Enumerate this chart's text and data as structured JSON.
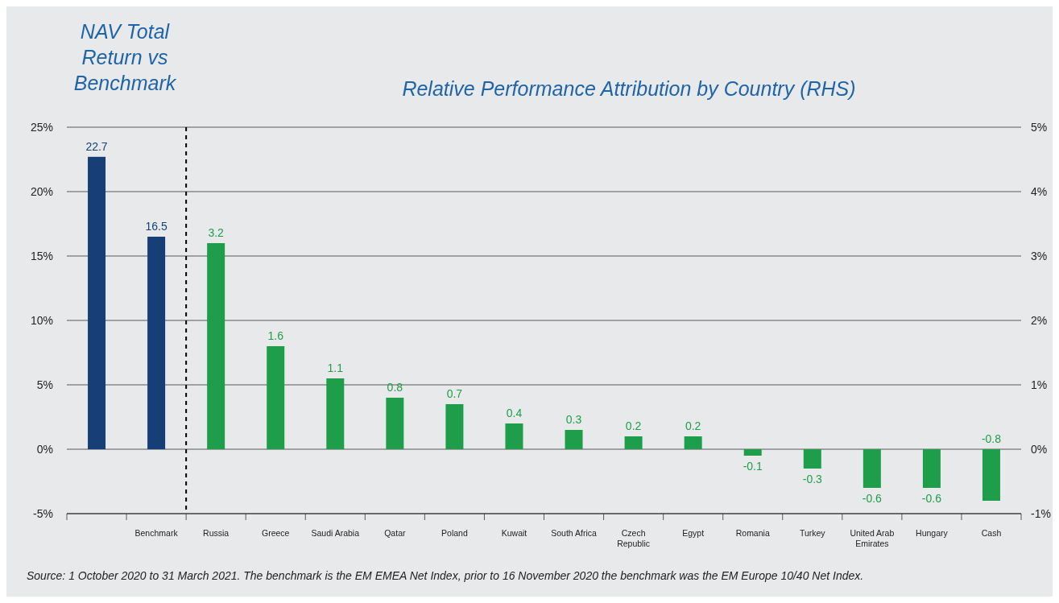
{
  "chart_data": {
    "type": "bar",
    "title": "NAV Total Return vs Benchmark",
    "subtitle": "Relative Performance Attribution by Country (RHS)",
    "categories": [
      null,
      "Benchmark",
      "Russia",
      "Greece",
      "Saudi Arabia",
      "Qatar",
      "Poland",
      "Kuwait",
      "South Africa",
      "Czech Republic",
      "Egypt",
      "Romania",
      "Turkey",
      "United Arab Emirates",
      "Hungary",
      "Cash"
    ],
    "series": [
      {
        "color": "#163f78",
        "values": [
          22.7,
          16.5,
          null,
          null,
          null,
          null,
          null,
          null,
          null,
          null,
          null,
          null,
          null,
          null,
          null,
          null
        ]
      },
      {
        "color": "#1e9e4b",
        "axis": "y2",
        "values": [
          null,
          null,
          3.2,
          1.6,
          1.1,
          0.8,
          0.7,
          0.4,
          0.3,
          0.2,
          0.2,
          -0.1,
          -0.3,
          -0.6,
          -0.6,
          -0.8
        ]
      }
    ],
    "ylim": [
      -5,
      25
    ],
    "yticks": [
      {
        "value": -5,
        "label": "-5%"
      },
      {
        "value": 0,
        "label": "0%"
      },
      {
        "value": 5,
        "label": "5%"
      },
      {
        "value": 10,
        "label": "10%"
      },
      {
        "value": 15,
        "label": "15%"
      },
      {
        "value": 20,
        "label": "20%"
      },
      {
        "value": 25,
        "label": "25%"
      }
    ],
    "y2lim": [
      -1,
      5
    ],
    "y2ticks": [
      {
        "value": -1,
        "label": "-1%"
      },
      {
        "value": 0,
        "label": "0%"
      },
      {
        "value": 1,
        "label": "1%"
      },
      {
        "value": 2,
        "label": "2%"
      },
      {
        "value": 3,
        "label": "3%"
      },
      {
        "value": 4,
        "label": "4%"
      },
      {
        "value": 5,
        "label": "5%"
      }
    ],
    "data_labels": true,
    "grid": "y",
    "annotations": [
      "Source: 1 October 2020 to 31 March 2021. The benchmark is the EM EMEA Net Index, prior to 16 November 2020 the benchmark was the EM Europe 10/40 Net Index."
    ]
  }
}
